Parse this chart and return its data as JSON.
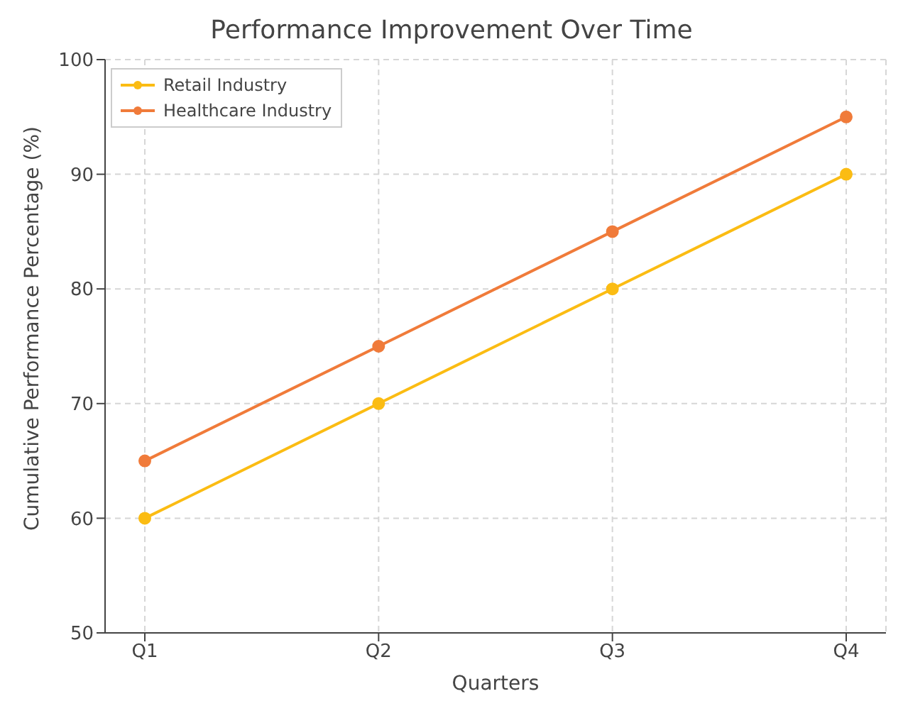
{
  "chart_data": {
    "type": "line",
    "title": "Performance Improvement Over Time",
    "xlabel": "Quarters",
    "ylabel": "Cumulative Performance Percentage (%)",
    "categories": [
      "Q1",
      "Q2",
      "Q3",
      "Q4"
    ],
    "series": [
      {
        "name": "Retail Industry",
        "color": "#fbbc13",
        "values": [
          60,
          70,
          80,
          90
        ]
      },
      {
        "name": "Healthcare Industry",
        "color": "#f07b3a",
        "values": [
          65,
          75,
          85,
          95
        ]
      }
    ],
    "ylim": [
      50,
      100
    ],
    "yticks": [
      50,
      60,
      70,
      80,
      90,
      100
    ],
    "grid": true,
    "legend": "top left",
    "marker": "circle",
    "line_style": "solid"
  }
}
